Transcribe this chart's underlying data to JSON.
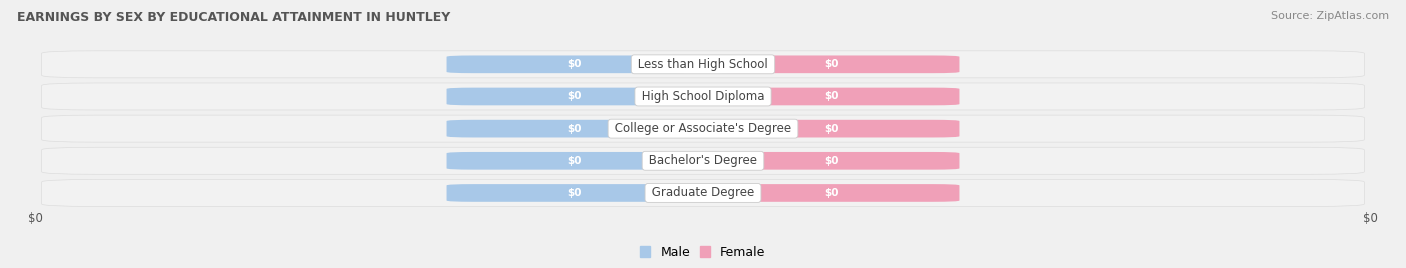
{
  "title": "EARNINGS BY SEX BY EDUCATIONAL ATTAINMENT IN HUNTLEY",
  "source": "Source: ZipAtlas.com",
  "categories": [
    "Less than High School",
    "High School Diploma",
    "College or Associate's Degree",
    "Bachelor's Degree",
    "Graduate Degree"
  ],
  "male_color": "#a8c8e8",
  "female_color": "#f0a0b8",
  "male_label": "Male",
  "female_label": "Female",
  "value_label": "$0",
  "xlabel_left": "$0",
  "xlabel_right": "$0",
  "title_color": "#555555",
  "source_color": "#888888",
  "row_bg": "#ececec",
  "row_stripe": "#e4e4e4",
  "bar_row_bg_light": "#f5f5f5",
  "bar_row_bg_dark": "#e8e8e8"
}
